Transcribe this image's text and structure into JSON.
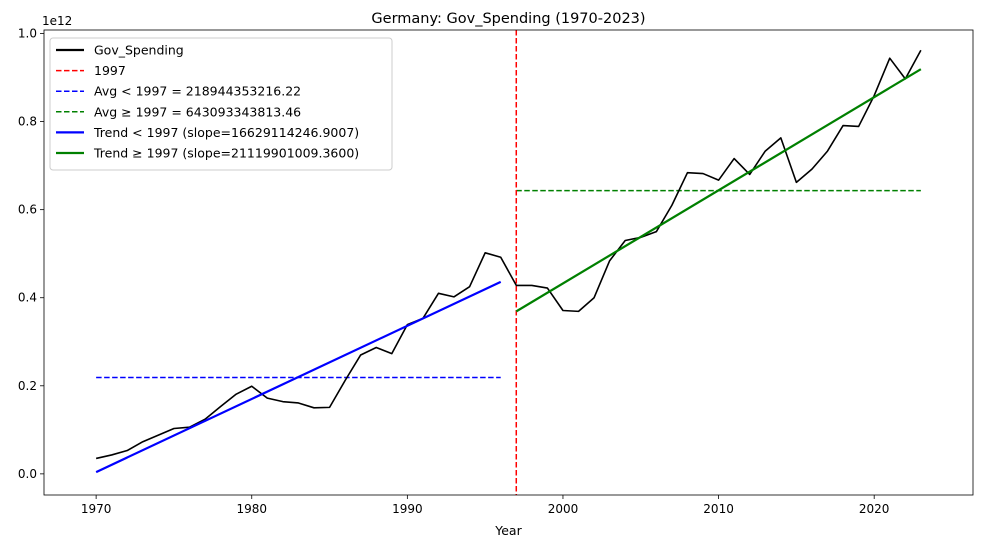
{
  "chart_data": {
    "type": "line",
    "title": "Germany: Gov_Spending (1970-2023)",
    "xlabel": "Year",
    "ylabel": "",
    "offset_label": "1e12",
    "xlim": [
      1966.65,
      2026.35
    ],
    "ylim": [
      -0.048,
      1.008
    ],
    "x_ticks": [
      1970,
      1980,
      1990,
      2000,
      2010,
      2020
    ],
    "x_tick_labels": [
      "1970",
      "1980",
      "1990",
      "2000",
      "2010",
      "2020"
    ],
    "y_ticks": [
      0.0,
      0.2,
      0.4,
      0.6,
      0.8,
      1.0
    ],
    "y_tick_labels": [
      "0.0",
      "0.2",
      "0.4",
      "0.6",
      "0.8",
      "1.0"
    ],
    "split_year": 1997,
    "series": [
      {
        "name": "Gov_Spending",
        "style": "solid",
        "color": "#000000",
        "x": [
          1970,
          1971,
          1972,
          1973,
          1974,
          1975,
          1976,
          1977,
          1978,
          1979,
          1980,
          1981,
          1982,
          1983,
          1984,
          1985,
          1986,
          1987,
          1988,
          1989,
          1990,
          1991,
          1992,
          1993,
          1994,
          1995,
          1996,
          1997,
          1998,
          1999,
          2000,
          2001,
          2002,
          2003,
          2004,
          2005,
          2006,
          2007,
          2008,
          2009,
          2010,
          2011,
          2012,
          2013,
          2014,
          2015,
          2016,
          2017,
          2018,
          2019,
          2020,
          2021,
          2022,
          2023
        ],
        "y": [
          0.035,
          0.043,
          0.053,
          0.073,
          0.088,
          0.103,
          0.106,
          0.124,
          0.153,
          0.181,
          0.199,
          0.172,
          0.164,
          0.161,
          0.15,
          0.151,
          0.212,
          0.27,
          0.287,
          0.273,
          0.339,
          0.353,
          0.41,
          0.402,
          0.425,
          0.502,
          0.492,
          0.428,
          0.428,
          0.422,
          0.371,
          0.369,
          0.4,
          0.484,
          0.53,
          0.537,
          0.55,
          0.61,
          0.684,
          0.682,
          0.667,
          0.716,
          0.68,
          0.733,
          0.763,
          0.662,
          0.692,
          0.733,
          0.791,
          0.789,
          0.859,
          0.944,
          0.897,
          0.962
        ]
      }
    ],
    "reference_line": {
      "name": "1997",
      "x": 1997,
      "color": "#ff0000",
      "style": "dashed"
    },
    "averages": [
      {
        "name": "Avg < 1997 = 218944353216.22",
        "value": 0.218944353216,
        "x_range": [
          1970,
          1996
        ],
        "color": "#0000ff",
        "style": "dashed"
      },
      {
        "name": "Avg ≥ 1997 = 643093343813.46",
        "value": 0.643093343813,
        "x_range": [
          1997,
          2023
        ],
        "color": "#008000",
        "style": "dashed"
      }
    ],
    "trends": [
      {
        "name": "Trend < 1997 (slope=16629114246.9007)",
        "x_range": [
          1970,
          1996
        ],
        "y_range": [
          0.004,
          0.436
        ],
        "color": "#0000ff",
        "style": "solid"
      },
      {
        "name": "Trend ≥ 1997 (slope=21119901009.3600)",
        "x_range": [
          1997,
          2023
        ],
        "y_range": [
          0.369,
          0.919
        ],
        "color": "#008000",
        "style": "solid"
      }
    ],
    "legend": {
      "position": "top-left",
      "entries": [
        {
          "label": "Gov_Spending",
          "color": "#000000",
          "style": "solid"
        },
        {
          "label": "1997",
          "color": "#ff0000",
          "style": "dashed"
        },
        {
          "label": "Avg < 1997 = 218944353216.22",
          "color": "#0000ff",
          "style": "dashed"
        },
        {
          "label": "Avg ≥ 1997 = 643093343813.46",
          "color": "#008000",
          "style": "dashed"
        },
        {
          "label": "Trend < 1997 (slope=16629114246.9007)",
          "color": "#0000ff",
          "style": "solid"
        },
        {
          "label": "Trend ≥ 1997 (slope=21119901009.3600)",
          "color": "#008000",
          "style": "solid"
        }
      ]
    }
  }
}
